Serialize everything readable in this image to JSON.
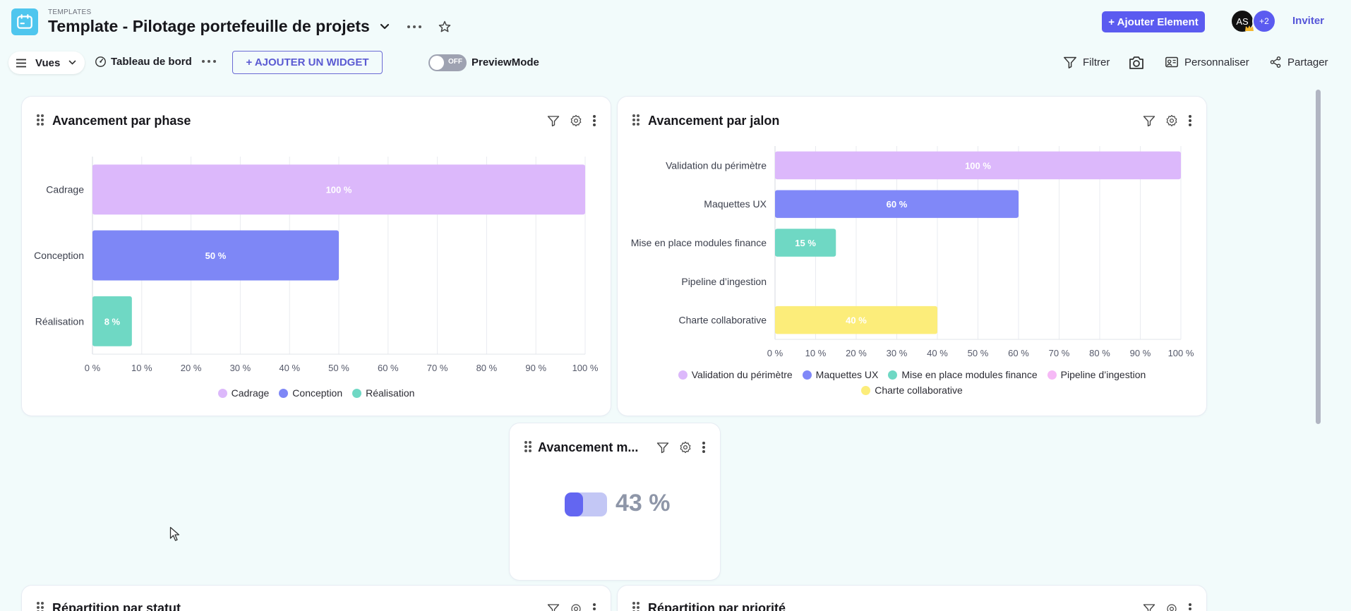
{
  "header": {
    "small_label": "TEMPLATES",
    "title": "Template - Pilotage portefeuille de projets",
    "add_element_label": "+ Ajouter Element",
    "avatar_initials": "AS",
    "extra_members": "+2",
    "invite_label": "Inviter"
  },
  "toolbar": {
    "views_label": "Vues",
    "dashboard_label": "Tableau de bord",
    "add_widget_label": "+ AJOUTER UN WIDGET",
    "toggle_state": "OFF",
    "preview_label": "PreviewMode",
    "filter_label": "Filtrer",
    "customize_label": "Personnaliser",
    "share_label": "Partager"
  },
  "widgets": {
    "phase": {
      "title": "Avancement par phase"
    },
    "jalon": {
      "title": "Avancement par jalon"
    },
    "mean": {
      "title": "Avancement m...",
      "value": 43,
      "display": "43 %"
    },
    "status": {
      "title": "Répartition par statut"
    },
    "priority": {
      "title": "Répartition par priorité"
    }
  },
  "chart_data": [
    {
      "type": "bar",
      "orientation": "horizontal",
      "title": "Avancement par phase",
      "categories": [
        "Cadrage",
        "Conception",
        "Réalisation"
      ],
      "values": [
        100,
        50,
        8
      ],
      "colors": [
        "#dcb8fb",
        "#7e87f6",
        "#6fd8c4"
      ],
      "xlim": [
        0,
        100
      ],
      "xticks": [
        "0 %",
        "10 %",
        "20 %",
        "30 %",
        "40 %",
        "50 %",
        "60 %",
        "70 %",
        "80 %",
        "90 %",
        "100 %"
      ],
      "value_labels": [
        "100 %",
        "50 %",
        "8 %"
      ],
      "legend": [
        "Cadrage",
        "Conception",
        "Réalisation"
      ],
      "legend_colors": [
        "#dcb8fb",
        "#7e87f6",
        "#6fd8c4"
      ],
      "legend_position": "bottom",
      "grid": true
    },
    {
      "type": "bar",
      "orientation": "horizontal",
      "title": "Avancement par jalon",
      "categories": [
        "Validation du périmètre",
        "Maquettes UX",
        "Mise en place modules finance",
        "Pipeline d’ingestion",
        "Charte collaborative"
      ],
      "values": [
        100,
        60,
        15,
        0,
        40
      ],
      "colors": [
        "#dcb8fb",
        "#8088f8",
        "#6fd8c4",
        "#f6b9f6",
        "#fced7a"
      ],
      "xlim": [
        0,
        100
      ],
      "xticks": [
        "0 %",
        "10 %",
        "20 %",
        "30 %",
        "40 %",
        "50 %",
        "60 %",
        "70 %",
        "80 %",
        "90 %",
        "100 %"
      ],
      "value_labels": [
        "100 %",
        "60 %",
        "15 %",
        "",
        "40 %"
      ],
      "legend": [
        "Validation du périmètre",
        "Maquettes UX",
        "Mise en place modules finance",
        "Pipeline d’ingestion",
        "Charte collaborative"
      ],
      "legend_colors": [
        "#dcb8fb",
        "#8088f8",
        "#6fd8c4",
        "#f6b9f6",
        "#fced7a"
      ],
      "legend_position": "bottom",
      "grid": true
    }
  ],
  "colors": {
    "accent": "#5b5bf0",
    "background": "#f2fbfb",
    "toggle_off": "#9ea2b1",
    "gauge_fill": "#6366f1",
    "gauge_track": "#c3c7f5",
    "value_text": "#8e96a8"
  },
  "icons": [
    "calendar-icon",
    "chevron-down-icon",
    "more-icon",
    "star-icon",
    "menu-icon",
    "dashboard-icon",
    "filter-icon",
    "camera-icon",
    "customize-icon",
    "share-icon",
    "drag-handle-icon",
    "gear-icon",
    "kebab-icon",
    "crown-icon",
    "cursor-icon"
  ]
}
